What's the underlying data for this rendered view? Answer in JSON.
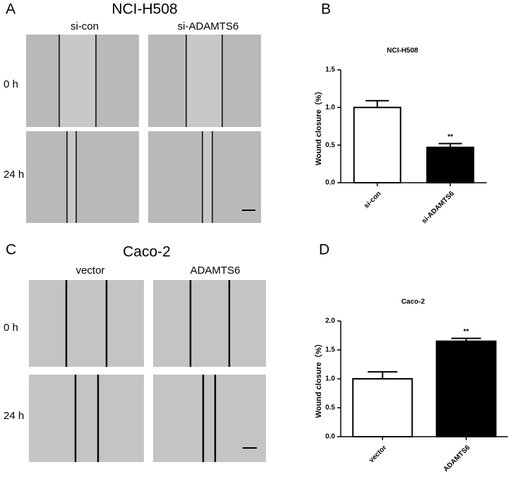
{
  "panels": {
    "A": {
      "label": "A",
      "title": "NCI-H508",
      "columns": [
        "si-con",
        "si-ADAMTS6"
      ],
      "rows": [
        "0 h",
        "24 h"
      ]
    },
    "C": {
      "label": "C",
      "title": "Caco-2",
      "columns": [
        "vector",
        "ADAMTS6"
      ],
      "rows": [
        "0 h",
        "24 h"
      ]
    }
  },
  "chart_data": [
    {
      "type": "bar",
      "panel_label": "B",
      "title": "NCI-H508",
      "ylabel": "Wound closure（%）",
      "categories": [
        "si-con",
        "si-ADAMTS6"
      ],
      "values": [
        1.0,
        0.47
      ],
      "errors": [
        0.09,
        0.05
      ],
      "colors": [
        "#ffffff",
        "#000000"
      ],
      "significance": [
        null,
        "**"
      ],
      "ylim": [
        0,
        1.5
      ],
      "yticks": [
        {
          "value": 0,
          "label": "0.0"
        },
        {
          "value": 0.5,
          "label": "0.5"
        },
        {
          "value": 1,
          "label": "1.0"
        },
        {
          "value": 1.5,
          "label": "1.5"
        }
      ]
    },
    {
      "type": "bar",
      "panel_label": "D",
      "title": "Caco-2",
      "ylabel": "Wound closure（%）",
      "categories": [
        "vector",
        "ADAMTS6"
      ],
      "values": [
        1.0,
        1.65
      ],
      "errors": [
        0.12,
        0.05
      ],
      "colors": [
        "#ffffff",
        "#000000"
      ],
      "significance": [
        null,
        "**"
      ],
      "ylim": [
        0,
        2.0
      ],
      "yticks": [
        {
          "value": 0,
          "label": "0.0"
        },
        {
          "value": 0.5,
          "label": "0.5"
        },
        {
          "value": 1,
          "label": "1.0"
        },
        {
          "value": 1.5,
          "label": "1.5"
        },
        {
          "value": 2,
          "label": "2.0"
        }
      ]
    }
  ]
}
